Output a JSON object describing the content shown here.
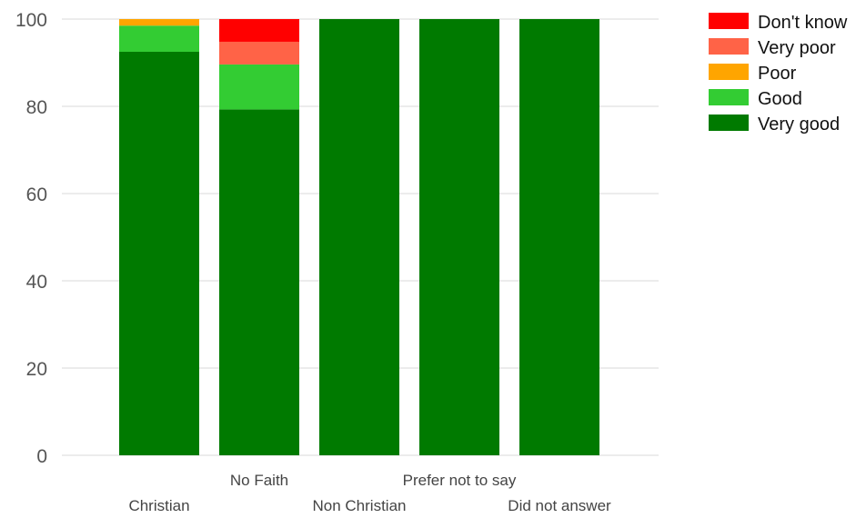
{
  "chart_data": {
    "type": "bar",
    "stacked": true,
    "categories": [
      "Christian",
      "No Faith",
      "Non Christian",
      "Prefer not to say",
      "Did not answer"
    ],
    "series": [
      {
        "name": "Very good",
        "color": "#007a00",
        "values": [
          92.5,
          79.3,
          100,
          100,
          100
        ]
      },
      {
        "name": "Good",
        "color": "#33cc33",
        "values": [
          6.0,
          10.3,
          0,
          0,
          0
        ]
      },
      {
        "name": "Poor",
        "color": "#ffa500",
        "values": [
          1.5,
          0,
          0,
          0,
          0
        ]
      },
      {
        "name": "Very poor",
        "color": "#ff6347",
        "values": [
          0,
          5.2,
          0,
          0,
          0
        ]
      },
      {
        "name": "Don't know",
        "color": "#ff0000",
        "values": [
          0,
          5.2,
          0,
          0,
          0
        ]
      }
    ],
    "ylim": [
      0,
      100
    ],
    "yticks": [
      "0",
      "20",
      "40",
      "60",
      "80",
      "100"
    ],
    "grid": true,
    "legend_position": "top-right",
    "legend_order": [
      "Don't know",
      "Very poor",
      "Poor",
      "Good",
      "Very good"
    ]
  }
}
